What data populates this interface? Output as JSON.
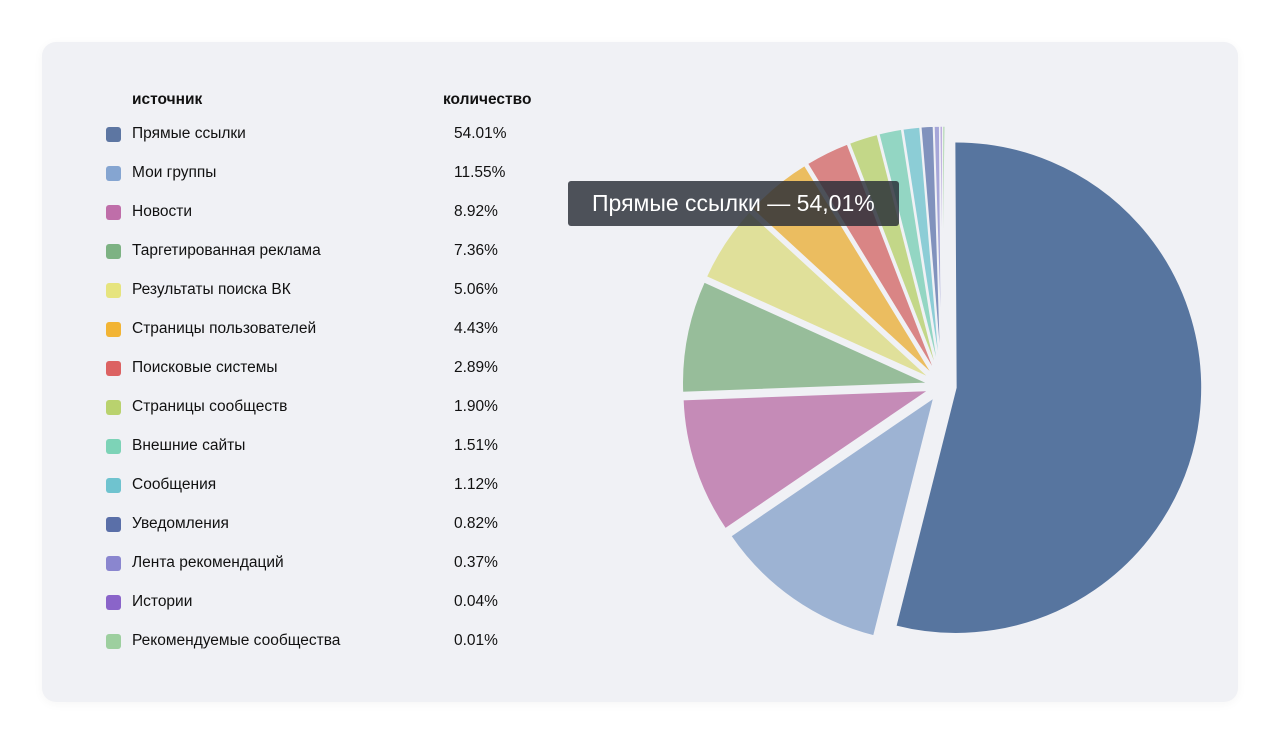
{
  "legend": {
    "header_source": "источник",
    "header_count": "количество"
  },
  "tooltip": "Прямые ссылки — 54,01%",
  "chart_data": {
    "type": "pie",
    "title": "",
    "series": [
      {
        "name": "Прямые ссылки",
        "value": 54.01,
        "label": "54.01%",
        "color": "#57759f",
        "swatch": "#5d76a2"
      },
      {
        "name": "Мои группы",
        "value": 11.55,
        "label": "11.55%",
        "color": "#9db3d3",
        "swatch": "#85a5d1"
      },
      {
        "name": "Новости",
        "value": 8.92,
        "label": "8.92%",
        "color": "#c58bb7",
        "swatch": "#bf6ea9"
      },
      {
        "name": "Таргетированная реклама",
        "value": 7.36,
        "label": "7.36%",
        "color": "#97bd9a",
        "swatch": "#7db283"
      },
      {
        "name": "Результаты поиска ВК",
        "value": 5.06,
        "label": "5.06%",
        "color": "#e0e09a",
        "swatch": "#e6e47e"
      },
      {
        "name": "Страницы пользователей",
        "value": 4.43,
        "label": "4.43%",
        "color": "#ebbd60",
        "swatch": "#f2b434"
      },
      {
        "name": "Поисковые системы",
        "value": 2.89,
        "label": "2.89%",
        "color": "#d98585",
        "swatch": "#dc6262"
      },
      {
        "name": "Страницы сообществ",
        "value": 1.9,
        "label": "1.90%",
        "color": "#c3d788",
        "swatch": "#b9d26e"
      },
      {
        "name": "Внешние сайты",
        "value": 1.51,
        "label": "1.51%",
        "color": "#93d6c3",
        "swatch": "#7dd3b7"
      },
      {
        "name": "Сообщения",
        "value": 1.12,
        "label": "1.12%",
        "color": "#8ccdd6",
        "swatch": "#6fc3cf"
      },
      {
        "name": "Уведомления",
        "value": 0.82,
        "label": "0.82%",
        "color": "#8192bd",
        "swatch": "#5a6fa8"
      },
      {
        "name": "Лента рекомендаций",
        "value": 0.37,
        "label": "0.37%",
        "color": "#a6a6d8",
        "swatch": "#8a86cf"
      },
      {
        "name": "Истории",
        "value": 0.04,
        "label": "0.04%",
        "color": "#a38ad2",
        "swatch": "#8a64c9"
      },
      {
        "name": "Рекомендуемые сообщества",
        "value": 0.01,
        "label": "0.01%",
        "color": "#a8d4a8",
        "swatch": "#9dcf9f"
      }
    ],
    "highlighted": "Прямые ссылки"
  }
}
